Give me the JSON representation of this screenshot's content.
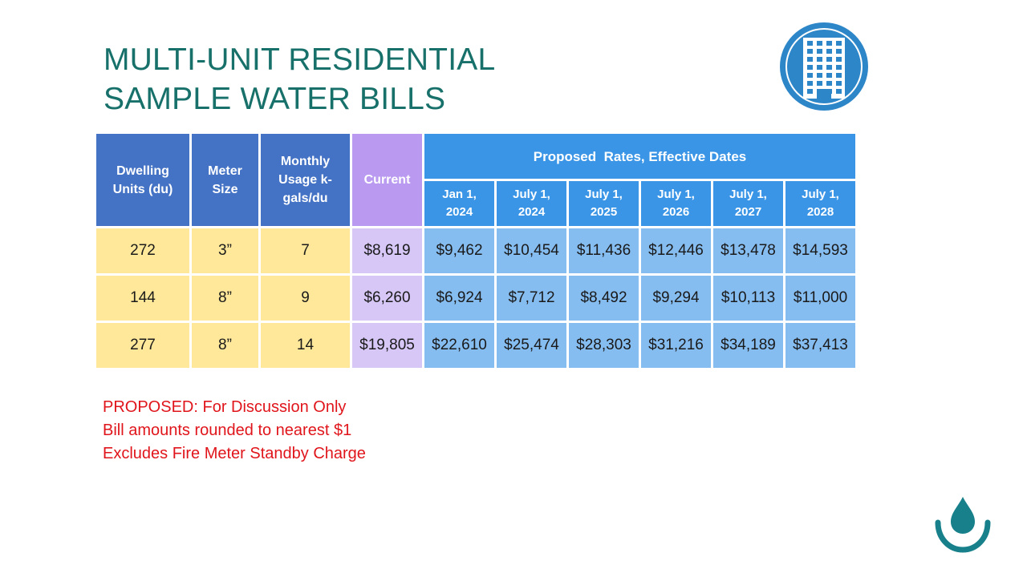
{
  "title": {
    "line1": "MULTI-UNIT RESIDENTIAL",
    "line2": "SAMPLE WATER BILLS"
  },
  "icons": {
    "building": "building-icon",
    "logo": "water-drop-logo"
  },
  "colors": {
    "title": "#17706a",
    "header_dark": "#4472c4",
    "header_current": "#b99af0",
    "header_proposed": "#3b95e6",
    "cell_yellow": "#ffe89a",
    "cell_current": "#d6c7f6",
    "cell_proposed": "#86bdf0",
    "notes": "#e0151b"
  },
  "table": {
    "headers": {
      "dwelling": "Dwelling Units (du)",
      "meter": "Meter Size",
      "usage": "Monthly Usage k-gals/du",
      "current": "Current",
      "proposed": "Proposed  Rates, Effective Dates"
    },
    "dates": [
      [
        "Jan 1,",
        "2024"
      ],
      [
        "July 1,",
        "2024"
      ],
      [
        "July 1,",
        "2025"
      ],
      [
        "July 1,",
        "2026"
      ],
      [
        "July 1,",
        "2027"
      ],
      [
        "July 1,",
        "2028"
      ]
    ],
    "rows": [
      {
        "du": "272",
        "meter": "3”",
        "usage": "7",
        "current": "$8,619",
        "proposed": [
          "$9,462",
          "$10,454",
          "$11,436",
          "$12,446",
          "$13,478",
          "$14,593"
        ]
      },
      {
        "du": "144",
        "meter": "8”",
        "usage": "9",
        "current": "$6,260",
        "proposed": [
          "$6,924",
          "$7,712",
          "$8,492",
          "$9,294",
          "$10,113",
          "$11,000"
        ]
      },
      {
        "du": "277",
        "meter": "8”",
        "usage": "14",
        "current": "$19,805",
        "proposed": [
          "$22,610",
          "$25,474",
          "$28,303",
          "$31,216",
          "$34,189",
          "$37,413"
        ]
      }
    ]
  },
  "notes": [
    "PROPOSED: For Discussion Only",
    "Bill amounts rounded to nearest $1",
    "Excludes Fire Meter Standby Charge"
  ]
}
